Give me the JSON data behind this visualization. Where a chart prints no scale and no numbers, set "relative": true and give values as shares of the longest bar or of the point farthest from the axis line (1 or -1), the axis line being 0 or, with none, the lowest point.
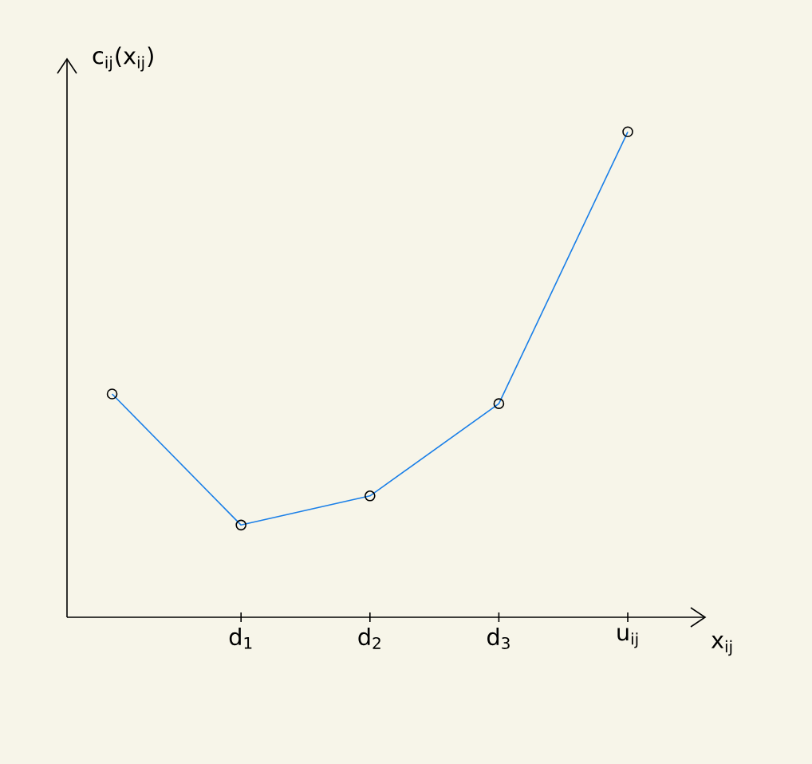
{
  "chart_data": {
    "type": "line",
    "relative": true,
    "ylabel": "c$_{ij}$(x$_{ij}$)",
    "xlabel": "x$_{ij}$",
    "categories": [
      null,
      "d$_{1}$",
      "d$_{2}$",
      "d$_{3}$",
      "u$_{ij}$"
    ],
    "series": [
      {
        "color": "#1a7fe8",
        "values": [
          0.46,
          0.19,
          0.25,
          0.44,
          1
        ]
      }
    ],
    "marker": "circle",
    "grid": false
  }
}
